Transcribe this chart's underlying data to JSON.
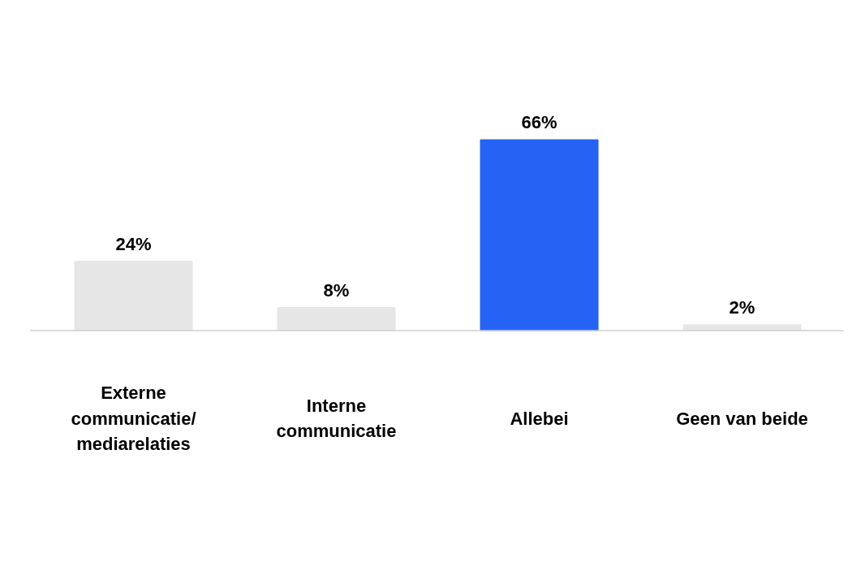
{
  "chart_data": {
    "type": "bar",
    "categories": [
      "Externe\ncommunicatie/\nmediarelaties",
      "Interne\ncommunicatie",
      "Allebei",
      "Geen van beide"
    ],
    "values": [
      24,
      8,
      66,
      2
    ],
    "colors": [
      "#e6e6e6",
      "#e6e6e6",
      "#2563f5",
      "#e6e6e6"
    ],
    "data_labels": true,
    "value_labels": [
      "24%",
      "8%",
      "66%",
      "2%"
    ],
    "grid": false
  }
}
